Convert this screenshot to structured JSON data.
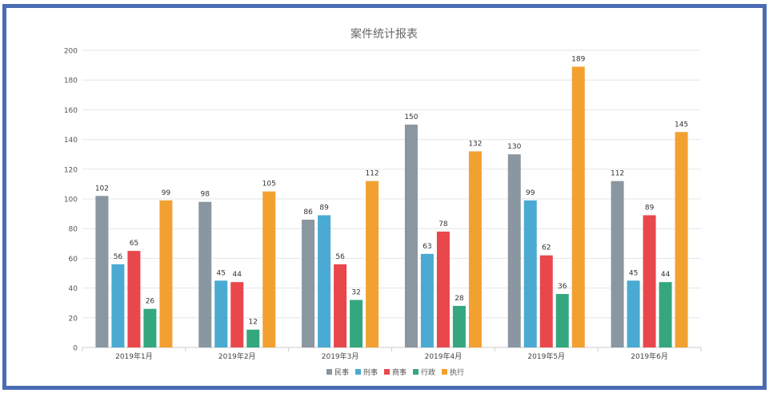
{
  "chart_data": {
    "type": "bar",
    "title": "案件统计报表",
    "categories": [
      "2019年1月",
      "2019年2月",
      "2019年3月",
      "2019年4月",
      "2019年5月",
      "2019年6月"
    ],
    "series": [
      {
        "name": "民事",
        "color": "#8a96a0",
        "values": [
          102,
          98,
          86,
          150,
          130,
          112
        ]
      },
      {
        "name": "刑事",
        "color": "#4aaad2",
        "values": [
          56,
          45,
          89,
          63,
          99,
          45
        ]
      },
      {
        "name": "商事",
        "color": "#e8474c",
        "values": [
          65,
          44,
          56,
          78,
          62,
          89
        ]
      },
      {
        "name": "行政",
        "color": "#35a77e",
        "values": [
          26,
          12,
          32,
          28,
          36,
          44
        ]
      },
      {
        "name": "执行",
        "color": "#f2a131",
        "values": [
          99,
          105,
          112,
          132,
          189,
          145
        ]
      }
    ],
    "ylim": [
      0,
      200
    ],
    "yticks": [
      0,
      20,
      40,
      60,
      80,
      100,
      120,
      140,
      160,
      180,
      200
    ],
    "grid": true,
    "legend": "bottom-center",
    "xlabel": "",
    "ylabel": ""
  }
}
